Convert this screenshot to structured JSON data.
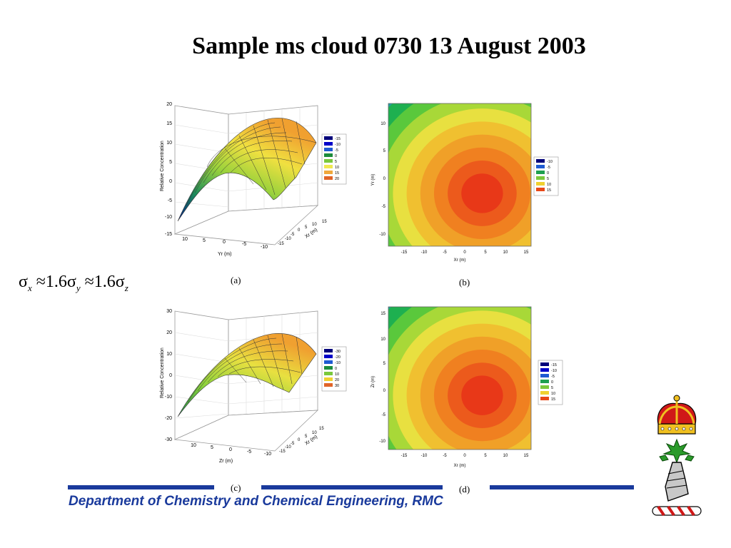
{
  "slide": {
    "title": "Sample ms cloud 0730 13 August 2003",
    "formula_sigma": "σ",
    "formula_x": "x",
    "formula_approx1": "≈1.6σ",
    "formula_y": "y",
    "formula_approx2": "≈1.6σ",
    "formula_z": "z",
    "footer": "Department of Chemistry and Chemical Engineering, RMC",
    "colors": {
      "footer_blue": "#1a3a9c"
    }
  },
  "chart_data": [
    {
      "panel": "(a)",
      "type": "surface3d",
      "ylabel": "Relative Concentration",
      "xlabel": "Yr (m)",
      "depth_label": "Xr (m)",
      "z_ticks": [
        "20",
        "15",
        "10",
        "5",
        "0",
        "-5",
        "-10",
        "-15"
      ],
      "x_ticks": [
        "10",
        "5",
        "0",
        "-5",
        "-10"
      ],
      "depth_ticks": [
        "15",
        "10",
        "5",
        "0",
        "-5",
        "-10",
        "-15"
      ],
      "legend": {
        "values": [
          "-15",
          "-10",
          "-5",
          "0",
          "5",
          "10",
          "15",
          "20"
        ],
        "colors": [
          "#00007a",
          "#0000c8",
          "#1e5ad2",
          "#1c8c3c",
          "#7ac83c",
          "#f0e850",
          "#f0a83c",
          "#e06428"
        ]
      }
    },
    {
      "panel": "(b)",
      "type": "heatmap",
      "xlabel": "Xr (m)",
      "ylabel": "Yr (m)",
      "x_ticks": [
        "-15",
        "-10",
        "-5",
        "0",
        "5",
        "10",
        "15"
      ],
      "y_ticks": [
        "10",
        "5",
        "0",
        "-5",
        "-10"
      ],
      "peak": {
        "x": 5,
        "y": -3
      },
      "legend": {
        "values": [
          "-10",
          "-5",
          "0",
          "5",
          "10",
          "15"
        ],
        "colors": [
          "#00007a",
          "#1e5ad2",
          "#1ea050",
          "#7ac83c",
          "#f0d030",
          "#e84818"
        ]
      }
    },
    {
      "panel": "(c)",
      "type": "surface3d",
      "ylabel": "Relative Concentration",
      "xlabel": "Zr (m)",
      "depth_label": "Xr (m)",
      "z_ticks": [
        "30",
        "20",
        "10",
        "0",
        "-10",
        "-20",
        "-30"
      ],
      "x_ticks": [
        "10",
        "5",
        "0",
        "-5",
        "-10"
      ],
      "depth_ticks": [
        "15",
        "10",
        "5",
        "0",
        "-5",
        "-10",
        "-15"
      ],
      "legend": {
        "values": [
          "-30",
          "-20",
          "-10",
          "0",
          "10",
          "20",
          "30"
        ],
        "colors": [
          "#00007a",
          "#0000c8",
          "#1e5ad2",
          "#1c8c3c",
          "#7ac83c",
          "#f0d030",
          "#e06428"
        ]
      }
    },
    {
      "panel": "(d)",
      "type": "heatmap",
      "xlabel": "Xr (m)",
      "ylabel": "Zr (m)",
      "x_ticks": [
        "-15",
        "-10",
        "-5",
        "0",
        "5",
        "10",
        "15"
      ],
      "y_ticks": [
        "15",
        "10",
        "5",
        "0",
        "-5",
        "-10"
      ],
      "peak": {
        "x": 5,
        "y": -2
      },
      "legend": {
        "values": [
          "-15",
          "-10",
          "-5",
          "0",
          "5",
          "10",
          "15"
        ],
        "colors": [
          "#00007a",
          "#0000c8",
          "#1e5ad2",
          "#1ea050",
          "#7ac83c",
          "#f0d030",
          "#e84818"
        ]
      }
    }
  ]
}
